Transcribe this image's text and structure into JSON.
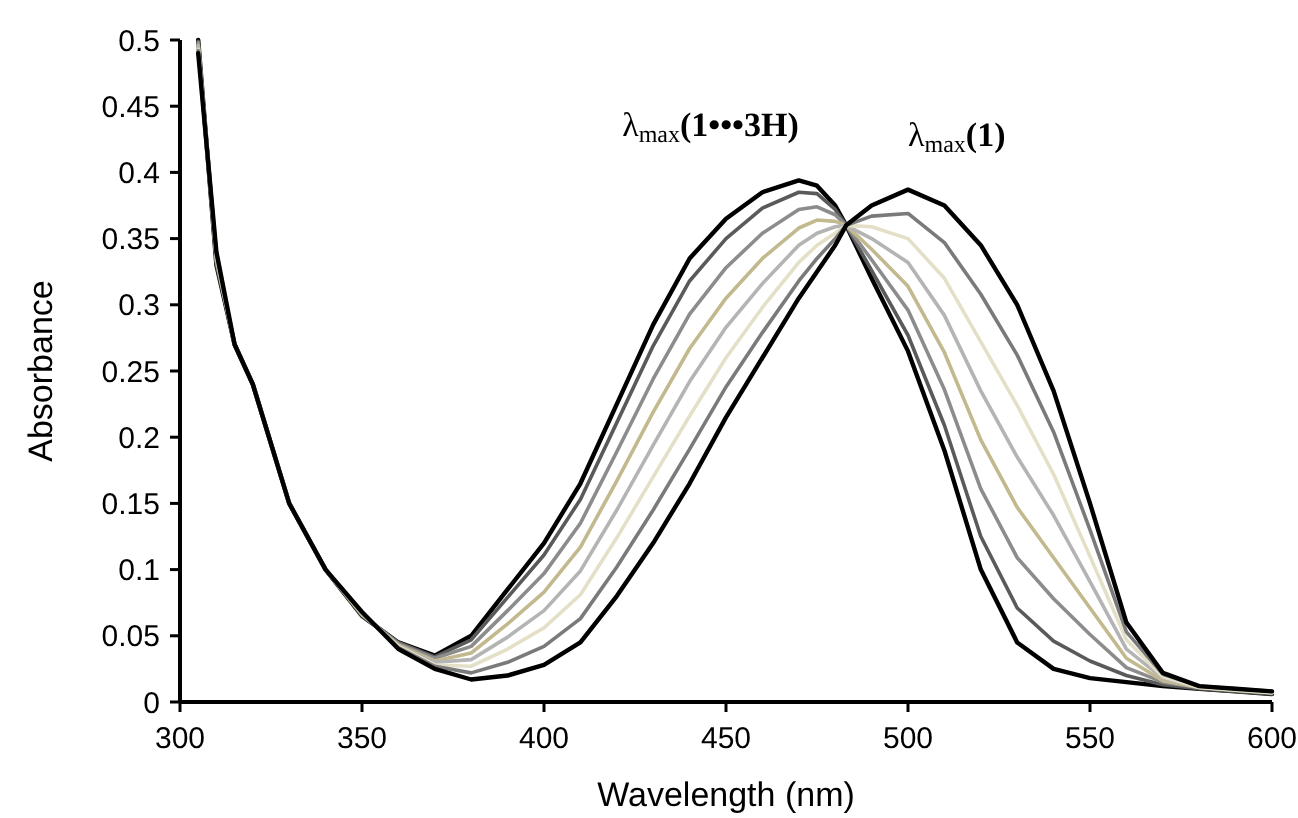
{
  "chart_data": {
    "type": "line",
    "xlabel": "Wavelength (nm)",
    "ylabel": "Absorbance",
    "x": [
      305,
      310,
      315,
      320,
      330,
      340,
      350,
      360,
      370,
      380,
      390,
      400,
      410,
      420,
      430,
      440,
      450,
      460,
      470,
      475,
      480,
      483,
      490,
      500,
      510,
      520,
      530,
      540,
      550,
      560,
      570,
      580,
      590,
      600
    ],
    "series": [
      {
        "color": "#000000",
        "values": [
          0.5,
          0.33,
          0.27,
          0.24,
          0.15,
          0.1,
          0.065,
          0.045,
          0.035,
          0.05,
          0.085,
          0.12,
          0.165,
          0.225,
          0.285,
          0.335,
          0.365,
          0.385,
          0.394,
          0.39,
          0.375,
          0.36,
          0.32,
          0.265,
          0.19,
          0.1,
          0.045,
          0.025,
          0.018,
          0.015,
          0.012,
          0.01,
          0.008,
          0.006
        ]
      },
      {
        "color": "#5a5a5a",
        "values": [
          0.499,
          0.331,
          0.27,
          0.24,
          0.15,
          0.1,
          0.065,
          0.045,
          0.034,
          0.047,
          0.079,
          0.111,
          0.153,
          0.211,
          0.269,
          0.318,
          0.35,
          0.373,
          0.385,
          0.384,
          0.372,
          0.36,
          0.326,
          0.277,
          0.209,
          0.125,
          0.071,
          0.046,
          0.031,
          0.02,
          0.013,
          0.01,
          0.008,
          0.006
        ]
      },
      {
        "color": "#8c8c8c",
        "values": [
          0.498,
          0.333,
          0.27,
          0.24,
          0.15,
          0.1,
          0.066,
          0.044,
          0.033,
          0.042,
          0.069,
          0.097,
          0.135,
          0.189,
          0.244,
          0.293,
          0.328,
          0.354,
          0.372,
          0.374,
          0.368,
          0.36,
          0.334,
          0.296,
          0.236,
          0.161,
          0.109,
          0.078,
          0.051,
          0.026,
          0.015,
          0.011,
          0.009,
          0.007
        ]
      },
      {
        "color": "#c2b98e",
        "values": [
          0.496,
          0.334,
          0.27,
          0.24,
          0.15,
          0.1,
          0.066,
          0.043,
          0.031,
          0.037,
          0.059,
          0.083,
          0.117,
          0.167,
          0.219,
          0.267,
          0.305,
          0.335,
          0.358,
          0.364,
          0.363,
          0.36,
          0.342,
          0.314,
          0.264,
          0.198,
          0.147,
          0.109,
          0.071,
          0.033,
          0.016,
          0.011,
          0.009,
          0.007
        ]
      },
      {
        "color": "#b4b4b4",
        "values": [
          0.495,
          0.336,
          0.27,
          0.24,
          0.15,
          0.1,
          0.067,
          0.042,
          0.03,
          0.032,
          0.049,
          0.069,
          0.099,
          0.145,
          0.194,
          0.242,
          0.283,
          0.316,
          0.345,
          0.354,
          0.359,
          0.36,
          0.35,
          0.332,
          0.292,
          0.235,
          0.185,
          0.141,
          0.091,
          0.04,
          0.018,
          0.011,
          0.009,
          0.007
        ]
      },
      {
        "color": "#e4e0c8",
        "values": [
          0.493,
          0.337,
          0.27,
          0.24,
          0.15,
          0.1,
          0.067,
          0.042,
          0.028,
          0.027,
          0.04,
          0.056,
          0.081,
          0.124,
          0.17,
          0.216,
          0.26,
          0.298,
          0.332,
          0.345,
          0.354,
          0.36,
          0.359,
          0.35,
          0.32,
          0.272,
          0.224,
          0.172,
          0.11,
          0.047,
          0.019,
          0.011,
          0.009,
          0.007
        ]
      },
      {
        "color": "#7a7a7a",
        "values": [
          0.492,
          0.339,
          0.27,
          0.24,
          0.15,
          0.1,
          0.068,
          0.041,
          0.027,
          0.022,
          0.03,
          0.042,
          0.063,
          0.102,
          0.145,
          0.191,
          0.238,
          0.279,
          0.318,
          0.335,
          0.35,
          0.36,
          0.367,
          0.369,
          0.347,
          0.308,
          0.262,
          0.204,
          0.13,
          0.053,
          0.021,
          0.012,
          0.01,
          0.008
        ]
      },
      {
        "color": "#000000",
        "values": [
          0.49,
          0.34,
          0.27,
          0.24,
          0.15,
          0.1,
          0.068,
          0.04,
          0.025,
          0.017,
          0.02,
          0.028,
          0.045,
          0.08,
          0.12,
          0.165,
          0.215,
          0.26,
          0.305,
          0.325,
          0.345,
          0.36,
          0.375,
          0.387,
          0.375,
          0.345,
          0.3,
          0.235,
          0.15,
          0.06,
          0.022,
          0.012,
          0.01,
          0.008
        ]
      }
    ],
    "xlim": [
      300,
      600
    ],
    "xticks": [
      300,
      350,
      400,
      450,
      500,
      550,
      600
    ],
    "ylim": [
      0,
      0.5
    ],
    "yticks": [
      0,
      0.05,
      0.1,
      0.15,
      0.2,
      0.25,
      0.3,
      0.35,
      0.4,
      0.45,
      0.5
    ],
    "grid": false,
    "marker": "none",
    "line_style": "solid",
    "annotations": [
      {
        "text": "λ$_{max}$(1•••3H)",
        "x": 470,
        "y": 0.394
      },
      {
        "text": "λ$_{max}$(1)",
        "x": 500,
        "y": 0.387
      }
    ]
  }
}
